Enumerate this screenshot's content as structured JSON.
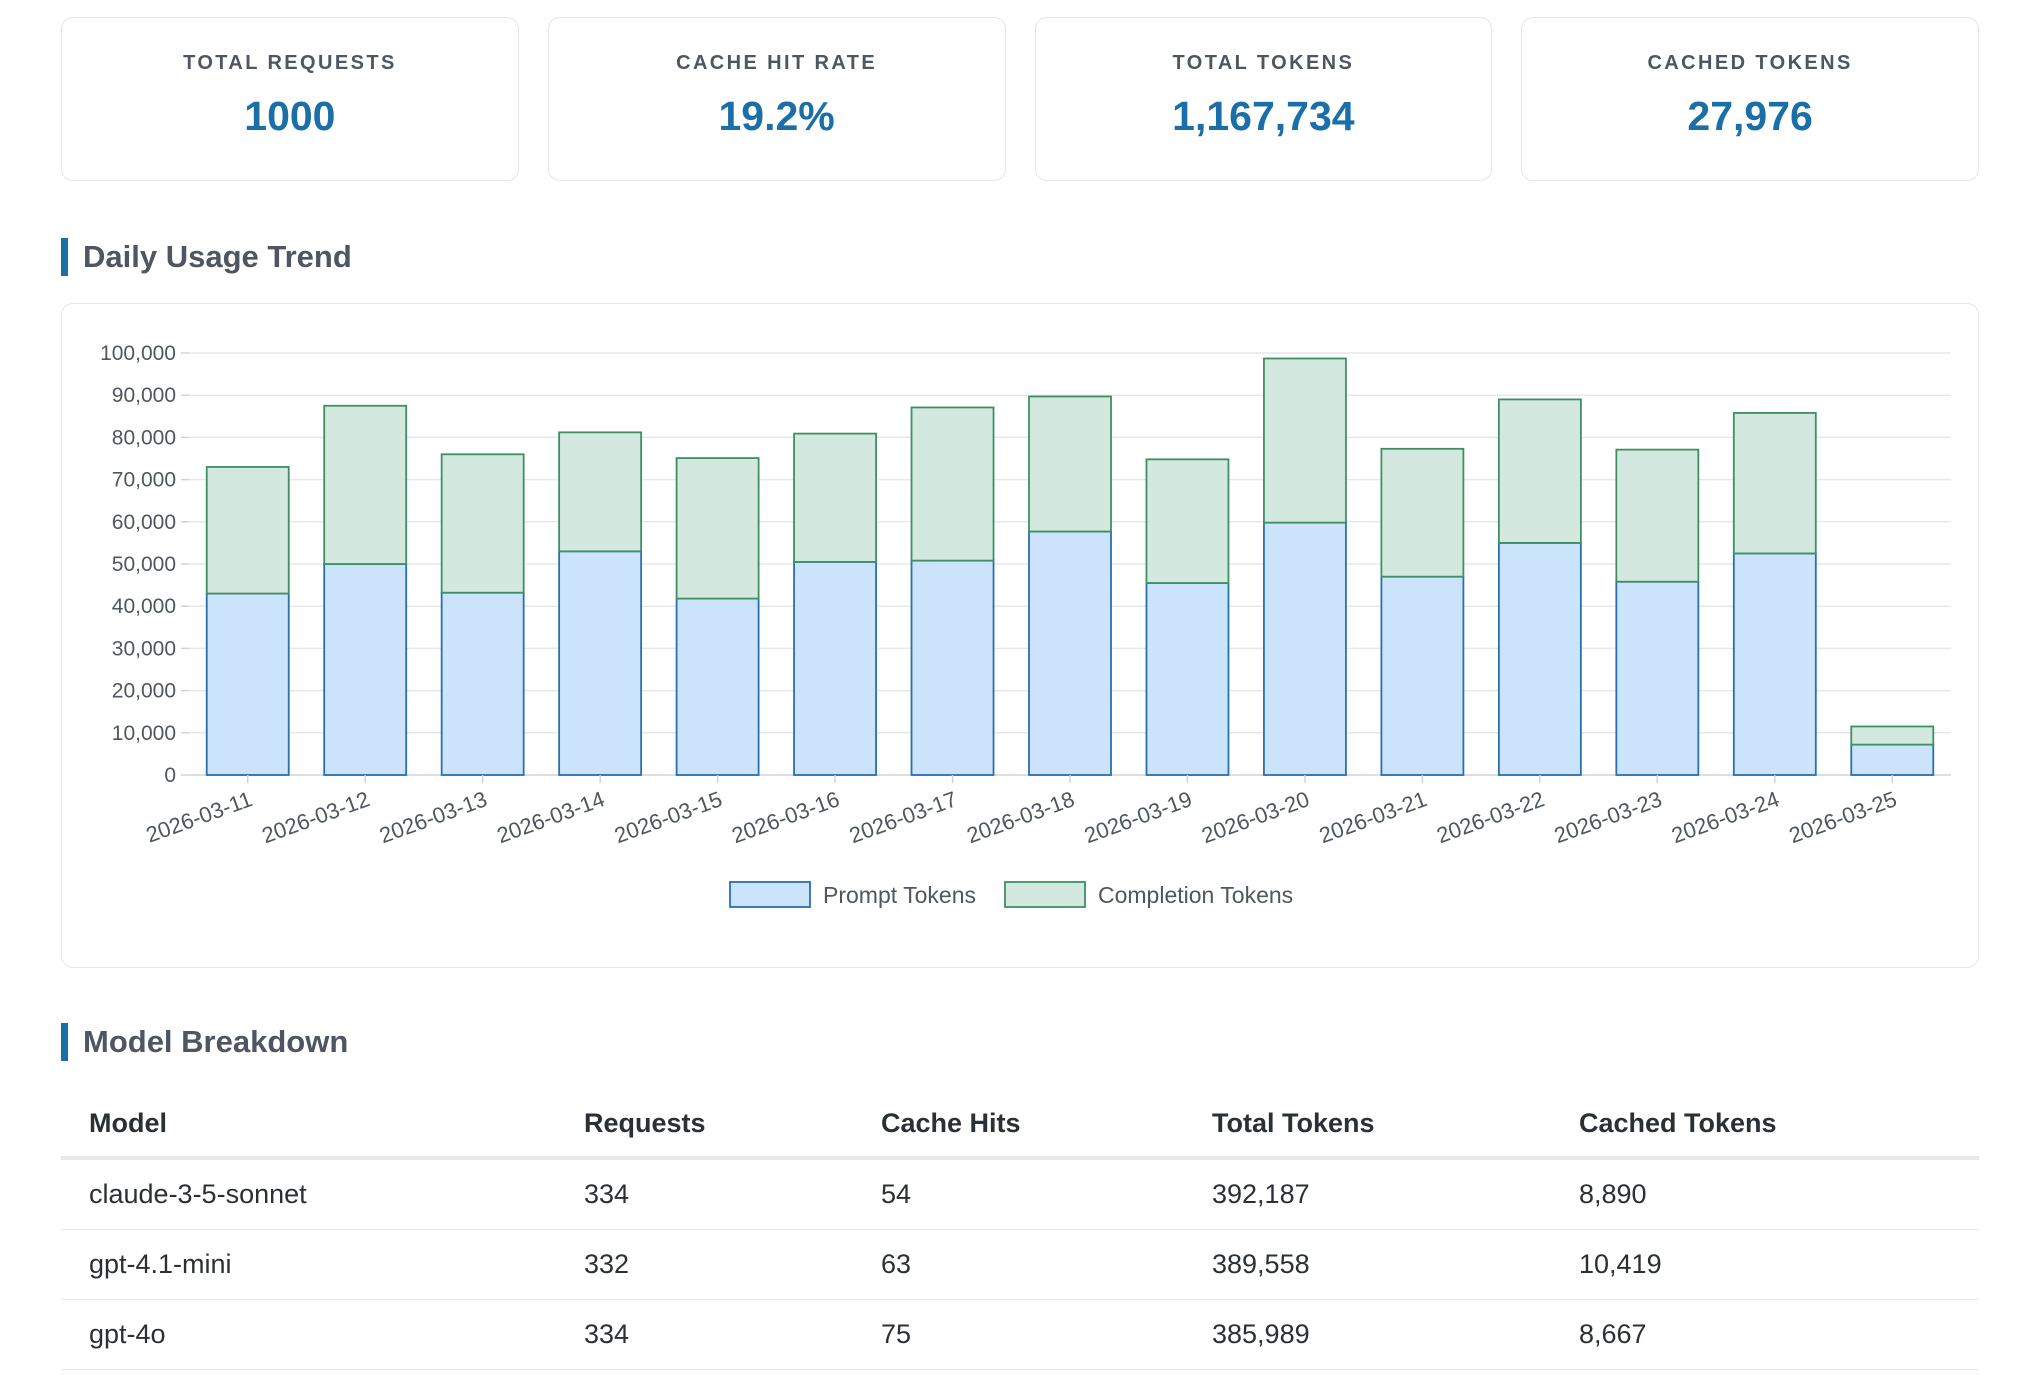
{
  "stats": [
    {
      "label": "TOTAL REQUESTS",
      "value": "1000"
    },
    {
      "label": "CACHE HIT RATE",
      "value": "19.2%"
    },
    {
      "label": "TOTAL TOKENS",
      "value": "1,167,734"
    },
    {
      "label": "CACHED TOKENS",
      "value": "27,976"
    }
  ],
  "daily_section": {
    "title": "Daily Usage Trend"
  },
  "model_section": {
    "title": "Model Breakdown"
  },
  "colors": {
    "accent": "#1a6fa8",
    "prompt_fill": "#cce4fb",
    "prompt_stroke": "#2a6fb0",
    "completion_fill": "#d3e9df",
    "completion_stroke": "#3f8f63"
  },
  "chart_data": {
    "type": "bar",
    "stacked": true,
    "categories": [
      "2026-03-11",
      "2026-03-12",
      "2026-03-13",
      "2026-03-14",
      "2026-03-15",
      "2026-03-16",
      "2026-03-17",
      "2026-03-18",
      "2026-03-19",
      "2026-03-20",
      "2026-03-21",
      "2026-03-22",
      "2026-03-23",
      "2026-03-24",
      "2026-03-25"
    ],
    "series": [
      {
        "name": "Prompt Tokens",
        "values": [
          43000,
          50000,
          43200,
          53000,
          41800,
          50500,
          50800,
          57700,
          45500,
          59800,
          47000,
          55000,
          45800,
          52500,
          7200
        ]
      },
      {
        "name": "Completion Tokens",
        "values": [
          30000,
          37500,
          32800,
          28200,
          33300,
          30400,
          36300,
          32000,
          29300,
          38900,
          30300,
          34000,
          31300,
          33300,
          4300
        ]
      }
    ],
    "yticks": [
      "0",
      "10,000",
      "20,000",
      "30,000",
      "40,000",
      "50,000",
      "60,000",
      "70,000",
      "80,000",
      "90,000",
      "100,000"
    ],
    "ylim": [
      0,
      100000
    ],
    "grid": true,
    "legend": "bottom",
    "title": "",
    "xlabel": "",
    "ylabel": ""
  },
  "table": {
    "headers": [
      "Model",
      "Requests",
      "Cache Hits",
      "Total Tokens",
      "Cached Tokens"
    ],
    "rows": [
      [
        "claude-3-5-sonnet",
        "334",
        "54",
        "392,187",
        "8,890"
      ],
      [
        "gpt-4.1-mini",
        "332",
        "63",
        "389,558",
        "10,419"
      ],
      [
        "gpt-4o",
        "334",
        "75",
        "385,989",
        "8,667"
      ]
    ]
  }
}
